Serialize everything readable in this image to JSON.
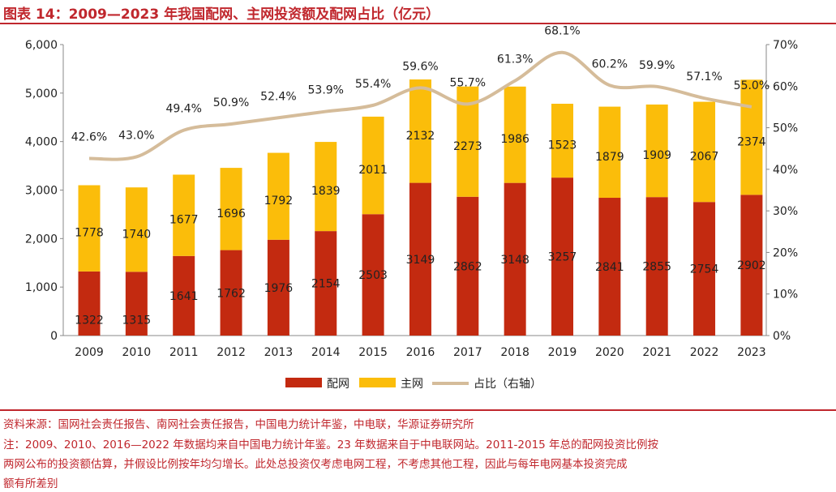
{
  "title": "图表 14：2009—2023 年我国配网、主网投资额及配网占比（亿元）",
  "footer": {
    "source": "资料来源：国网社会责任报告、南网社会责任报告，中国电力统计年鉴，中电联，华源证券研究所",
    "note1": "注：2009、2010、2016—2022 年数据均来自中国电力统计年鉴。23 年数据来自于中电联网站。2011-2015 年总的配网投资比例按",
    "note2": "两网公布的投资额估算，并假设比例按年均匀增长。此处总投资仅考虑电网工程，不考虑其他工程，因此与每年电网基本投资完成",
    "note3": "额有所差别"
  },
  "chart_data": {
    "type": "bar",
    "stacked": true,
    "categories": [
      "2009",
      "2010",
      "2011",
      "2012",
      "2013",
      "2014",
      "2015",
      "2016",
      "2017",
      "2018",
      "2019",
      "2020",
      "2021",
      "2022",
      "2023"
    ],
    "series": [
      {
        "name": "配网",
        "color": "#c32a10",
        "values": [
          1322,
          1315,
          1641,
          1762,
          1976,
          2154,
          2503,
          3149,
          2862,
          3148,
          3257,
          2841,
          2855,
          2754,
          2902
        ]
      },
      {
        "name": "主网",
        "color": "#fbbd0a",
        "values": [
          1778,
          1740,
          1677,
          1696,
          1792,
          1839,
          2011,
          2132,
          2273,
          1986,
          1523,
          1879,
          1909,
          2067,
          2374
        ]
      },
      {
        "name": "占比（右轴）",
        "type": "line",
        "axis": "right",
        "color": "#d5bc9a",
        "values": [
          42.6,
          43.0,
          49.4,
          50.9,
          52.4,
          53.9,
          55.4,
          59.6,
          55.7,
          61.3,
          68.1,
          60.2,
          59.9,
          57.1,
          55.0
        ],
        "labels": [
          "42.6%",
          "43.0%",
          "49.4%",
          "50.9%",
          "52.4%",
          "53.9%",
          "55.4%",
          "59.6%",
          "55.7%",
          "61.3%",
          "68.1%",
          "60.2%",
          "59.9%",
          "57.1%",
          "55.0%"
        ]
      }
    ],
    "ylim": [
      0,
      6000
    ],
    "yticks": [
      "0",
      "1,000",
      "2,000",
      "3,000",
      "4,000",
      "5,000",
      "6,000"
    ],
    "y2lim": [
      0,
      70
    ],
    "y2ticks": [
      "0%",
      "10%",
      "20%",
      "30%",
      "40%",
      "50%",
      "60%",
      "70%"
    ],
    "legend": "bottom",
    "grid": false
  }
}
